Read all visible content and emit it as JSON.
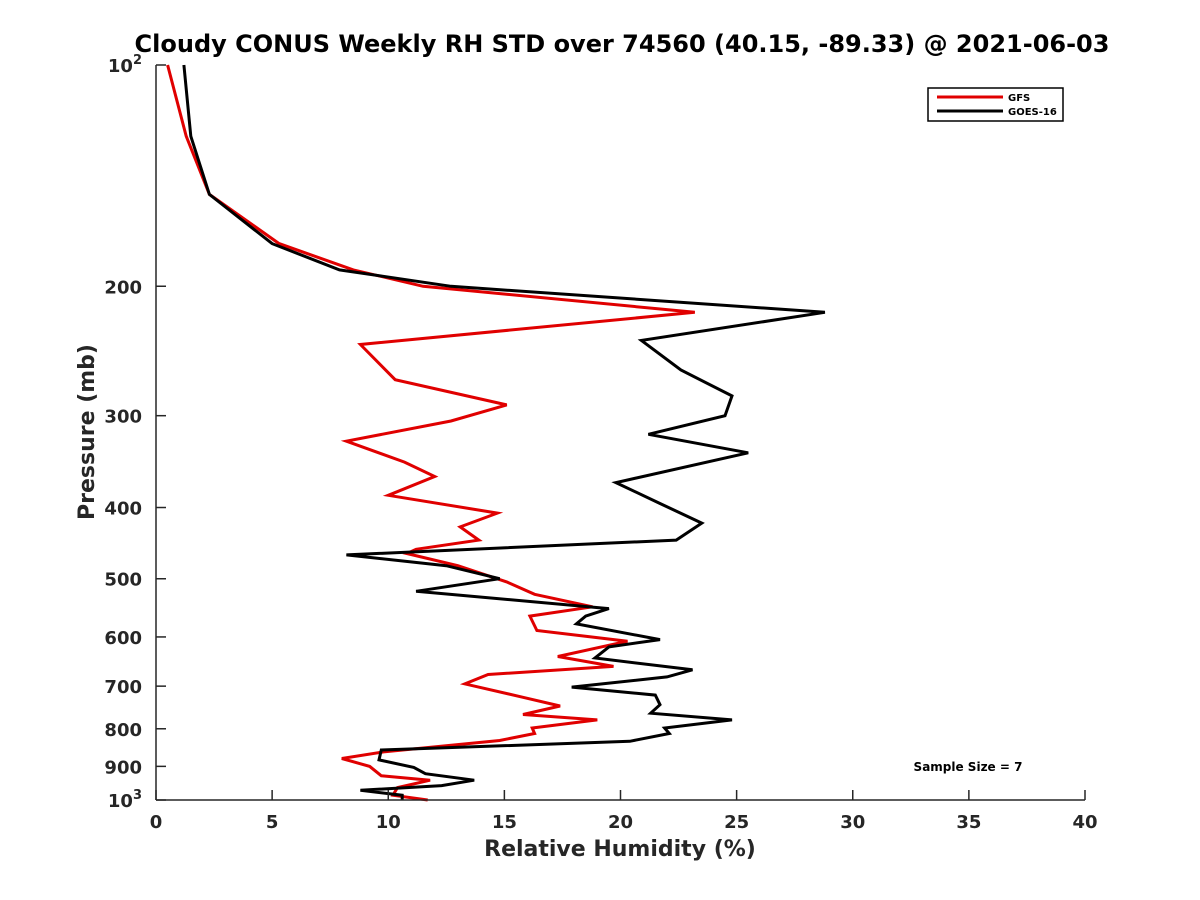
{
  "chart_data": {
    "type": "line",
    "title": "Cloudy CONUS Weekly RH STD over 74560 (40.15, -89.33) @ 2021-06-03",
    "xlabel": "Relative Humidity (%)",
    "ylabel": "Pressure (mb)",
    "xlim": [
      0,
      40
    ],
    "ylim": [
      100,
      1000
    ],
    "y_scale": "log",
    "y_reversed": true,
    "xticks": [
      0,
      5,
      10,
      15,
      20,
      25,
      30,
      35,
      40
    ],
    "yticks": [
      {
        "value": 100,
        "label": "10",
        "sup": "2"
      },
      {
        "value": 200,
        "label": "200",
        "sup": ""
      },
      {
        "value": 300,
        "label": "300",
        "sup": ""
      },
      {
        "value": 400,
        "label": "400",
        "sup": ""
      },
      {
        "value": 500,
        "label": "500",
        "sup": ""
      },
      {
        "value": 600,
        "label": "600",
        "sup": ""
      },
      {
        "value": 700,
        "label": "700",
        "sup": ""
      },
      {
        "value": 800,
        "label": "800",
        "sup": ""
      },
      {
        "value": 900,
        "label": "900",
        "sup": ""
      },
      {
        "value": 1000,
        "label": "10",
        "sup": "3"
      }
    ],
    "grid": false,
    "legend_position": "top-right",
    "annotation": "Sample Size = 7",
    "series": [
      {
        "name": "GFS",
        "color": "#e00000",
        "points": [
          [
            0.5,
            100
          ],
          [
            1.3,
            125
          ],
          [
            2.3,
            150
          ],
          [
            5.3,
            175
          ],
          [
            8.5,
            190
          ],
          [
            11.5,
            200
          ],
          [
            23.2,
            217
          ],
          [
            8.8,
            240
          ],
          [
            10.3,
            268
          ],
          [
            15.1,
            290
          ],
          [
            12.7,
            305
          ],
          [
            8.2,
            325
          ],
          [
            10.7,
            347
          ],
          [
            12.0,
            363
          ],
          [
            10.0,
            385
          ],
          [
            14.7,
            407
          ],
          [
            13.1,
            425
          ],
          [
            13.9,
            443
          ],
          [
            11.2,
            456
          ],
          [
            10.8,
            462
          ],
          [
            13.0,
            480
          ],
          [
            15.1,
            505
          ],
          [
            16.3,
            525
          ],
          [
            18.8,
            546
          ],
          [
            16.1,
            562
          ],
          [
            16.4,
            588
          ],
          [
            20.3,
            608
          ],
          [
            17.3,
            638
          ],
          [
            19.7,
            658
          ],
          [
            14.3,
            675
          ],
          [
            13.3,
            695
          ],
          [
            15.8,
            725
          ],
          [
            17.4,
            745
          ],
          [
            15.8,
            765
          ],
          [
            19.0,
            778
          ],
          [
            16.2,
            798
          ],
          [
            16.3,
            812
          ],
          [
            14.8,
            830
          ],
          [
            9.8,
            860
          ],
          [
            8.0,
            878
          ],
          [
            9.2,
            900
          ],
          [
            9.7,
            927
          ],
          [
            11.8,
            940
          ],
          [
            10.4,
            962
          ],
          [
            10.2,
            985
          ],
          [
            11.7,
            1000
          ]
        ]
      },
      {
        "name": "GOES-16",
        "color": "#000000",
        "points": [
          [
            1.2,
            100
          ],
          [
            1.5,
            125
          ],
          [
            2.3,
            150
          ],
          [
            5.0,
            175
          ],
          [
            7.9,
            190
          ],
          [
            12.7,
            200
          ],
          [
            28.8,
            217
          ],
          [
            20.9,
            237
          ],
          [
            22.6,
            260
          ],
          [
            24.8,
            282
          ],
          [
            24.5,
            300
          ],
          [
            21.2,
            318
          ],
          [
            25.5,
            337
          ],
          [
            19.8,
            370
          ],
          [
            21.7,
            395
          ],
          [
            23.5,
            420
          ],
          [
            22.4,
            443
          ],
          [
            8.2,
            464
          ],
          [
            12.5,
            480
          ],
          [
            14.8,
            500
          ],
          [
            11.2,
            520
          ],
          [
            19.5,
            549
          ],
          [
            18.5,
            562
          ],
          [
            18.1,
            576
          ],
          [
            21.7,
            605
          ],
          [
            19.5,
            619
          ],
          [
            18.9,
            641
          ],
          [
            23.1,
            665
          ],
          [
            22.0,
            680
          ],
          [
            17.9,
            702
          ],
          [
            21.5,
            720
          ],
          [
            21.7,
            742
          ],
          [
            21.3,
            762
          ],
          [
            24.8,
            778
          ],
          [
            21.9,
            798
          ],
          [
            22.1,
            812
          ],
          [
            20.4,
            832
          ],
          [
            9.7,
            855
          ],
          [
            9.6,
            882
          ],
          [
            11.1,
            903
          ],
          [
            11.6,
            921
          ],
          [
            13.7,
            940
          ],
          [
            12.3,
            956
          ],
          [
            8.8,
            970
          ],
          [
            10.6,
            985
          ],
          [
            10.6,
            1000
          ]
        ]
      }
    ]
  }
}
